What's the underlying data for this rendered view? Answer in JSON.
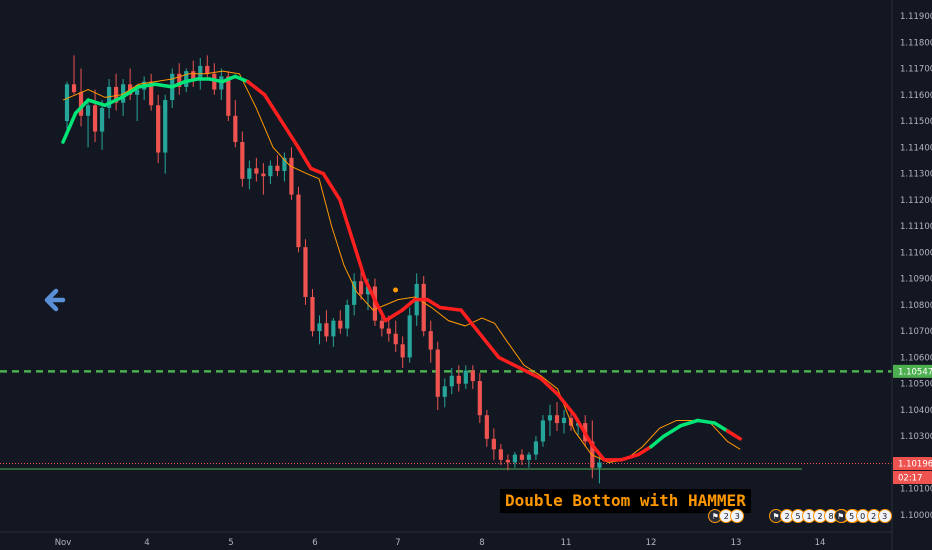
{
  "chart_data": {
    "type": "candlestick",
    "title": "",
    "xlabel": "",
    "ylabel": "",
    "ylim": [
      1.0996,
      1.1195
    ],
    "x_ticks": [
      "Nov",
      "4",
      "5",
      "6",
      "7",
      "8",
      "11",
      "12",
      "13",
      "14"
    ],
    "y_ticks": [
      "1.11900",
      "1.11800",
      "1.11700",
      "1.11600",
      "1.11500",
      "1.11400",
      "1.11300",
      "1.11200",
      "1.11100",
      "1.11000",
      "1.10900",
      "1.10800",
      "1.10700",
      "1.10600",
      "1.10500",
      "1.10400",
      "1.10300",
      "1.10100",
      "1.10000"
    ],
    "y_tick_values": [
      1.119,
      1.118,
      1.117,
      1.116,
      1.115,
      1.114,
      1.113,
      1.112,
      1.111,
      1.11,
      1.109,
      1.108,
      1.107,
      1.106,
      1.105,
      1.104,
      1.103,
      1.101,
      1.1
    ],
    "grid": false,
    "ma_path": [
      [
        0,
        1.1142
      ],
      [
        0.15,
        1.1153
      ],
      [
        0.3,
        1.1158
      ],
      [
        0.5,
        1.1156
      ],
      [
        0.7,
        1.1159
      ],
      [
        0.9,
        1.1163
      ],
      [
        1.1,
        1.1164
      ],
      [
        1.3,
        1.1163
      ],
      [
        1.45,
        1.1165
      ],
      [
        1.6,
        1.1166
      ],
      [
        1.75,
        1.1166
      ],
      [
        1.9,
        1.1165
      ],
      [
        2.05,
        1.1167
      ],
      [
        2.2,
        1.1165
      ],
      [
        2.4,
        1.116
      ],
      [
        2.6,
        1.115
      ],
      [
        2.8,
        1.114
      ],
      [
        2.95,
        1.1132
      ],
      [
        3.1,
        1.113
      ],
      [
        3.3,
        1.112
      ],
      [
        3.45,
        1.1105
      ],
      [
        3.6,
        1.109
      ],
      [
        3.75,
        1.108
      ],
      [
        3.85,
        1.1074
      ],
      [
        4.05,
        1.1078
      ],
      [
        4.2,
        1.1082
      ],
      [
        4.35,
        1.1082
      ],
      [
        4.5,
        1.1079
      ],
      [
        4.75,
        1.1078
      ],
      [
        5.0,
        1.1068
      ],
      [
        5.2,
        1.106
      ],
      [
        5.45,
        1.1056
      ],
      [
        5.7,
        1.1052
      ],
      [
        5.9,
        1.1046
      ],
      [
        6.1,
        1.1038
      ],
      [
        6.3,
        1.1027
      ],
      [
        6.45,
        1.1021
      ],
      [
        6.65,
        1.1021
      ],
      [
        6.85,
        1.1023
      ],
      [
        7.0,
        1.1026
      ],
      [
        7.15,
        1.103
      ],
      [
        7.35,
        1.1034
      ],
      [
        7.55,
        1.1036
      ],
      [
        7.75,
        1.1035
      ],
      [
        7.9,
        1.1032
      ],
      [
        8.05,
        1.1029
      ]
    ],
    "ma_colors": [
      [
        0,
        "#00e676"
      ],
      [
        1.45,
        "#00e676"
      ],
      [
        2.15,
        "#00e676"
      ],
      [
        2.25,
        "#ff1f1f"
      ],
      [
        6.9,
        "#ff1f1f"
      ],
      [
        7.0,
        "#00e676"
      ],
      [
        7.75,
        "#00e676"
      ],
      [
        7.85,
        "#ff1f1f"
      ]
    ],
    "fast_ma": [
      [
        0,
        1.1158
      ],
      [
        0.15,
        1.116
      ],
      [
        0.3,
        1.1162
      ],
      [
        0.5,
        1.1159
      ],
      [
        0.7,
        1.116
      ],
      [
        0.9,
        1.1164
      ],
      [
        1.1,
        1.1165
      ],
      [
        1.3,
        1.1166
      ],
      [
        1.5,
        1.1168
      ],
      [
        1.7,
        1.1168
      ],
      [
        1.9,
        1.1169
      ],
      [
        2.1,
        1.1168
      ],
      [
        2.3,
        1.1155
      ],
      [
        2.5,
        1.114
      ],
      [
        2.7,
        1.1133
      ],
      [
        2.9,
        1.113
      ],
      [
        3.05,
        1.1128
      ],
      [
        3.2,
        1.111
      ],
      [
        3.35,
        1.1095
      ],
      [
        3.5,
        1.1085
      ],
      [
        3.7,
        1.1078
      ],
      [
        3.85,
        1.108
      ],
      [
        4.0,
        1.1082
      ],
      [
        4.2,
        1.1083
      ],
      [
        4.4,
        1.1079
      ],
      [
        4.6,
        1.1074
      ],
      [
        4.8,
        1.1072
      ],
      [
        5.0,
        1.1075
      ],
      [
        5.15,
        1.1073
      ],
      [
        5.3,
        1.1066
      ],
      [
        5.5,
        1.1057
      ],
      [
        5.7,
        1.1053
      ],
      [
        5.9,
        1.1048
      ],
      [
        6.1,
        1.1032
      ],
      [
        6.3,
        1.1023
      ],
      [
        6.5,
        1.102
      ],
      [
        6.7,
        1.1021
      ],
      [
        6.9,
        1.1026
      ],
      [
        7.1,
        1.1033
      ],
      [
        7.3,
        1.1036
      ],
      [
        7.5,
        1.1036
      ],
      [
        7.7,
        1.1035
      ],
      [
        7.9,
        1.1028
      ],
      [
        8.05,
        1.1025
      ]
    ],
    "candles_start": 0,
    "candle_step": 0.0835,
    "candles": [
      [
        1.115,
        1.1165,
        1.1146,
        1.1164
      ],
      [
        1.1164,
        1.1175,
        1.116,
        1.1161
      ],
      [
        1.1161,
        1.117,
        1.1148,
        1.1152
      ],
      [
        1.1152,
        1.1158,
        1.114,
        1.1156
      ],
      [
        1.1156,
        1.1162,
        1.1142,
        1.1146
      ],
      [
        1.1146,
        1.1158,
        1.1139,
        1.1155
      ],
      [
        1.1155,
        1.1166,
        1.1151,
        1.1163
      ],
      [
        1.1163,
        1.1168,
        1.1154,
        1.1157
      ],
      [
        1.1157,
        1.1166,
        1.1152,
        1.1164
      ],
      [
        1.1164,
        1.117,
        1.1158,
        1.116
      ],
      [
        1.116,
        1.1164,
        1.115,
        1.1162
      ],
      [
        1.1162,
        1.1167,
        1.1158,
        1.1165
      ],
      [
        1.1165,
        1.1168,
        1.1154,
        1.1156
      ],
      [
        1.1156,
        1.116,
        1.1134,
        1.1138
      ],
      [
        1.1138,
        1.116,
        1.113,
        1.1158
      ],
      [
        1.1158,
        1.117,
        1.1155,
        1.1168
      ],
      [
        1.1168,
        1.1172,
        1.116,
        1.1163
      ],
      [
        1.1163,
        1.117,
        1.1161,
        1.1169
      ],
      [
        1.1169,
        1.1173,
        1.1163,
        1.1166
      ],
      [
        1.1166,
        1.1174,
        1.1162,
        1.1171
      ],
      [
        1.1171,
        1.1175,
        1.1166,
        1.1168
      ],
      [
        1.1168,
        1.1172,
        1.116,
        1.1162
      ],
      [
        1.1162,
        1.117,
        1.1158,
        1.1167
      ],
      [
        1.1167,
        1.1169,
        1.115,
        1.1152
      ],
      [
        1.1152,
        1.1158,
        1.114,
        1.1142
      ],
      [
        1.1142,
        1.1146,
        1.1125,
        1.1128
      ],
      [
        1.1128,
        1.1135,
        1.1124,
        1.1132
      ],
      [
        1.1132,
        1.1136,
        1.1127,
        1.113
      ],
      [
        1.113,
        1.1134,
        1.1122,
        1.1129
      ],
      [
        1.1129,
        1.1135,
        1.1126,
        1.1133
      ],
      [
        1.1133,
        1.1137,
        1.1129,
        1.1131
      ],
      [
        1.1131,
        1.1138,
        1.1127,
        1.1136
      ],
      [
        1.1136,
        1.114,
        1.112,
        1.1122
      ],
      [
        1.1122,
        1.1125,
        1.11,
        1.1102
      ],
      [
        1.1102,
        1.1105,
        1.108,
        1.1083
      ],
      [
        1.1083,
        1.1086,
        1.1068,
        1.107
      ],
      [
        1.107,
        1.1076,
        1.1065,
        1.1073
      ],
      [
        1.1073,
        1.1078,
        1.1066,
        1.1068
      ],
      [
        1.1068,
        1.1075,
        1.1064,
        1.1074
      ],
      [
        1.1074,
        1.1078,
        1.1069,
        1.1071
      ],
      [
        1.1071,
        1.1082,
        1.1068,
        1.108
      ],
      [
        1.108,
        1.1092,
        1.1076,
        1.1089
      ],
      [
        1.1089,
        1.1093,
        1.1082,
        1.1084
      ],
      [
        1.1084,
        1.109,
        1.1078,
        1.1087
      ],
      [
        1.1087,
        1.109,
        1.1072,
        1.1074
      ],
      [
        1.1074,
        1.1078,
        1.1068,
        1.1071
      ],
      [
        1.1071,
        1.1076,
        1.1066,
        1.1069
      ],
      [
        1.1069,
        1.1074,
        1.1062,
        1.1065
      ],
      [
        1.1065,
        1.1068,
        1.1056,
        1.106
      ],
      [
        1.106,
        1.1079,
        1.1058,
        1.1076
      ],
      [
        1.1076,
        1.1092,
        1.1072,
        1.1088
      ],
      [
        1.1088,
        1.1091,
        1.1068,
        1.107
      ],
      [
        1.107,
        1.1074,
        1.1058,
        1.1063
      ],
      [
        1.1063,
        1.1066,
        1.104,
        1.1045
      ],
      [
        1.1045,
        1.1052,
        1.1041,
        1.1049
      ],
      [
        1.1049,
        1.1056,
        1.1046,
        1.1053
      ],
      [
        1.1053,
        1.1057,
        1.1047,
        1.105
      ],
      [
        1.105,
        1.1057,
        1.1048,
        1.1055
      ],
      [
        1.1055,
        1.1057,
        1.1048,
        1.1051
      ],
      [
        1.1051,
        1.1054,
        1.1035,
        1.1038
      ],
      [
        1.1038,
        1.104,
        1.1026,
        1.1029
      ],
      [
        1.1029,
        1.1033,
        1.1021,
        1.1025
      ],
      [
        1.1025,
        1.1027,
        1.1019,
        1.1021
      ],
      [
        1.1021,
        1.1023,
        1.1017,
        1.102
      ],
      [
        1.102,
        1.1024,
        1.1018,
        1.1023
      ],
      [
        1.1023,
        1.1025,
        1.1019,
        1.1021
      ],
      [
        1.1021,
        1.1024,
        1.1018,
        1.1023
      ],
      [
        1.1023,
        1.103,
        1.1021,
        1.1028
      ],
      [
        1.1028,
        1.1038,
        1.1026,
        1.1036
      ],
      [
        1.1036,
        1.1042,
        1.103,
        1.1038
      ],
      [
        1.1038,
        1.1043,
        1.1032,
        1.1035
      ],
      [
        1.1035,
        1.104,
        1.1031,
        1.1037
      ],
      [
        1.1037,
        1.104,
        1.1032,
        1.1034
      ],
      [
        1.1034,
        1.1037,
        1.103,
        1.1035
      ],
      [
        1.1035,
        1.1038,
        1.1026,
        1.1028
      ],
      [
        1.1028,
        1.1036,
        1.1014,
        1.1018
      ],
      [
        1.1018,
        1.1024,
        1.1012,
        1.102
      ]
    ],
    "levels": [
      {
        "price": 1.10547,
        "label": "1.10547",
        "color": "#4caf50",
        "style": "dashed"
      },
      {
        "price": 1.10196,
        "label": "1.10196",
        "color": "#ef5350",
        "style": "dotted"
      },
      {
        "price": 1.10175,
        "color": "#4caf50",
        "style": "solid"
      }
    ],
    "countdown": "02:17",
    "annotation": "Double Bottom with HAMMER",
    "marker": {
      "x": 3.85,
      "price": 1.1083,
      "color": "#ff9800"
    },
    "up_color": "#26a69a",
    "down_color": "#ef5350"
  },
  "events": [
    {
      "x": 7.78,
      "badges": [
        "flag",
        "2",
        "3"
      ]
    },
    {
      "x": 8.5,
      "badges": [
        "flag",
        "2",
        "5",
        "1",
        "2",
        "8",
        "7",
        "8"
      ]
    },
    {
      "x": 9.27,
      "badges": [
        "flag",
        "5",
        "0",
        "2",
        "3"
      ]
    }
  ]
}
